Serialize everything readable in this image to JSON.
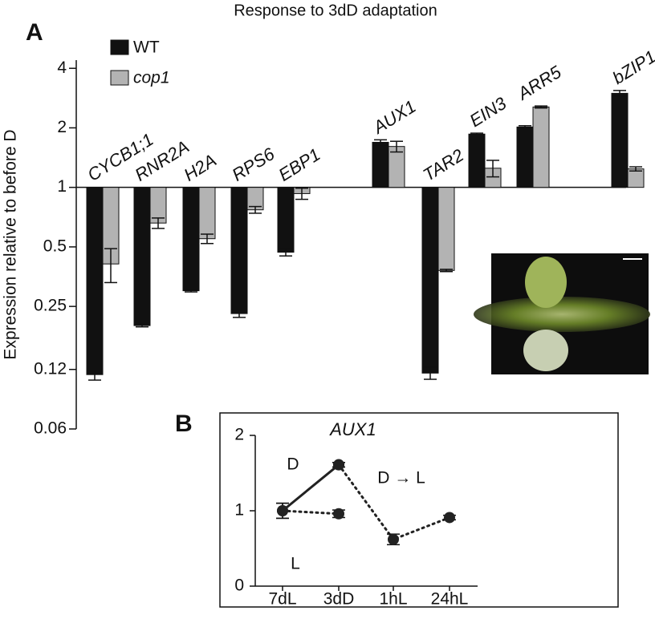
{
  "chart_data": [
    {
      "type": "bar",
      "panel": "A",
      "title": "Response to 3dD adaptation",
      "y_label": "Expression relative to before D",
      "log_scale": true,
      "ylim": [
        0.06,
        4.4
      ],
      "yticks": [
        0.06,
        0.12,
        0.25,
        0.5,
        1,
        2,
        4
      ],
      "categories": [
        "CYCB1;1",
        "RNR2A",
        "H2A",
        "RPS6",
        "EBP1",
        "AUX1",
        "TAR2",
        "EIN3",
        "ARR5",
        "bZIP1"
      ],
      "series": [
        {
          "name": "WT",
          "color": "#111111",
          "values": [
            0.113,
            0.2,
            0.3,
            0.23,
            0.47,
            1.69,
            0.115,
            1.86,
            2.02,
            2.99
          ],
          "errors": [
            0.007,
            0.003,
            0.004,
            0.01,
            0.02,
            0.05,
            0.008,
            0.02,
            0.03,
            0.1
          ]
        },
        {
          "name": "cop1",
          "color": "#b3b3b3",
          "values": [
            0.41,
            0.66,
            0.55,
            0.77,
            0.93,
            1.61,
            0.38,
            1.25,
            2.55,
            1.24
          ],
          "errors": [
            0.08,
            0.04,
            0.03,
            0.03,
            0.06,
            0.1,
            0.005,
            0.12,
            0.03,
            0.03
          ]
        }
      ]
    },
    {
      "type": "line",
      "panel": "B",
      "title": "AUX1",
      "categories": [
        "7dL",
        "3dD",
        "1hL",
        "24hL"
      ],
      "ylim": [
        0,
        2
      ],
      "yticks": [
        0,
        1,
        2
      ],
      "color": "#222222",
      "series": [
        {
          "name": "D",
          "line_style": "solid",
          "values": [
            1.0,
            1.61,
            null,
            null
          ],
          "errors": [
            0.1,
            0.03,
            null,
            null
          ]
        },
        {
          "name": "L",
          "line_style": "dotted",
          "values": [
            1.0,
            0.96,
            null,
            null
          ],
          "errors": [
            0.1,
            0.05,
            null,
            null
          ]
        },
        {
          "name": "D → L",
          "line_style": "dotted",
          "values": [
            null,
            1.61,
            0.62,
            0.91
          ],
          "errors": [
            null,
            0.03,
            0.07,
            0.03
          ]
        }
      ]
    }
  ]
}
